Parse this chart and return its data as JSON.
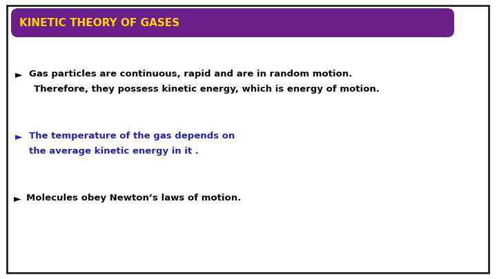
{
  "title": "KINETIC THEORY OF GASES",
  "title_color": "#FFD700",
  "title_bg_color": "#6B1F8A",
  "title_fontsize": 11,
  "bg_color": "#FFFFFF",
  "border_color": "#222222",
  "bullet_color_1": "#000000",
  "bullet_color_2": "#2222BB",
  "bullet_color_3": "#000000",
  "bullet1_line1": "Gas particles are continuous, rapid and are in random motion.",
  "bullet1_line2": "Therefore, they possess kinetic energy, which is energy of motion.",
  "bullet2_line1": "The temperature of the gas depends on",
  "bullet2_line2": "the average kinetic energy in it .",
  "bullet3_line1": "Molecules obey Newton’s laws of motion.",
  "bullet_fontsize": 9.5,
  "bullet_symbol": "►"
}
